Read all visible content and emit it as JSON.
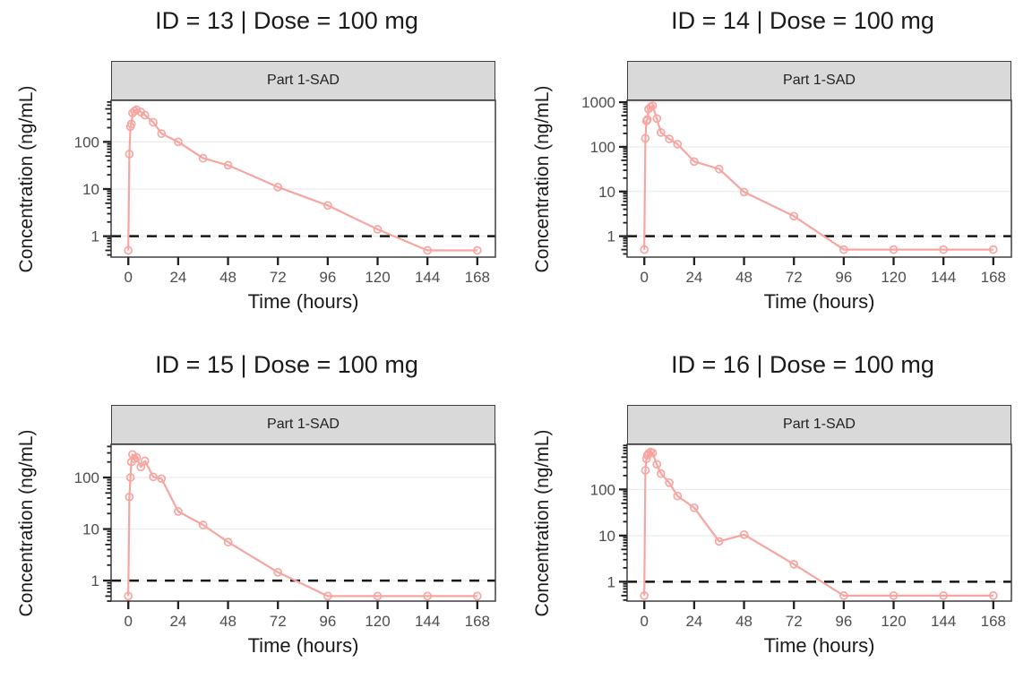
{
  "style": {
    "background": "#ffffff",
    "series_color": "#f7a5a0",
    "strip_fill": "#d9d9d9",
    "strip_border": "#3f3f3f",
    "panel_border": "#3f3f3f",
    "grid_color": "#ebebeb",
    "tick_color": "#1f1f1f",
    "tick_label_color": "#4d4d4d",
    "title_color": "#1a1a1a",
    "lloq_color": "#161616"
  },
  "chart_data": [
    {
      "type": "line",
      "title": "ID = 13 | Dose = 100 mg",
      "facet_label": "Part 1-SAD",
      "xlabel": "Time (hours)",
      "ylabel": "Concentration (ng/mL)",
      "legend": "none",
      "grid": "horizontal-major",
      "yscale": "log10",
      "x_ticks": [
        0,
        24,
        48,
        72,
        96,
        120,
        144,
        168
      ],
      "y_ticks": [
        1,
        10,
        100
      ],
      "xlim": [
        -8.3,
        176.7
      ],
      "ylim": [
        0.36,
        760
      ],
      "lloq": 1,
      "x": [
        0,
        0.5,
        1,
        1.5,
        2,
        3,
        4,
        6,
        8,
        12,
        16,
        24,
        36,
        48,
        72,
        96,
        120,
        144,
        168
      ],
      "y": [
        0.5,
        55,
        210,
        240,
        410,
        450,
        480,
        430,
        370,
        260,
        150,
        100,
        45,
        32,
        11,
        4.5,
        1.4,
        0.5,
        0.5
      ]
    },
    {
      "type": "line",
      "title": "ID = 14 | Dose = 100 mg",
      "facet_label": "Part 1-SAD",
      "xlabel": "Time (hours)",
      "ylabel": "Concentration (ng/mL)",
      "legend": "none",
      "grid": "horizontal-major",
      "yscale": "log10",
      "x_ticks": [
        0,
        24,
        48,
        72,
        96,
        120,
        144,
        168
      ],
      "y_ticks": [
        1,
        10,
        100,
        1000
      ],
      "xlim": [
        -8.3,
        176.7
      ],
      "ylim": [
        0.34,
        1100
      ],
      "lloq": 1,
      "x": [
        0,
        0.5,
        1,
        1.5,
        2,
        3,
        4,
        6,
        8,
        12,
        16,
        24,
        36,
        48,
        72,
        96,
        120,
        144,
        168
      ],
      "y": [
        0.5,
        155,
        380,
        410,
        700,
        780,
        830,
        430,
        210,
        150,
        115,
        47,
        32,
        9.7,
        2.8,
        0.5,
        0.5,
        0.5,
        0.5
      ]
    },
    {
      "type": "line",
      "title": "ID = 15 | Dose = 100 mg",
      "facet_label": "Part 1-SAD",
      "xlabel": "Time (hours)",
      "ylabel": "Concentration (ng/mL)",
      "legend": "none",
      "grid": "horizontal-major",
      "yscale": "log10",
      "x_ticks": [
        0,
        24,
        48,
        72,
        96,
        120,
        144,
        168
      ],
      "y_ticks": [
        1,
        10,
        100
      ],
      "xlim": [
        -8.3,
        176.7
      ],
      "ylim": [
        0.4,
        440
      ],
      "lloq": 1,
      "x": [
        0,
        0.5,
        1,
        1.5,
        2,
        3,
        4,
        6,
        8,
        12,
        16,
        24,
        36,
        48,
        72,
        96,
        120,
        144,
        168
      ],
      "y": [
        0.5,
        42,
        100,
        200,
        280,
        230,
        245,
        160,
        210,
        103,
        95,
        22,
        12,
        5.6,
        1.45,
        0.5,
        0.5,
        0.5,
        0.5
      ]
    },
    {
      "type": "line",
      "title": "ID = 16 | Dose = 100 mg",
      "facet_label": "Part 1-SAD",
      "xlabel": "Time (hours)",
      "ylabel": "Concentration (ng/mL)",
      "legend": "none",
      "grid": "horizontal-major",
      "yscale": "log10",
      "x_ticks": [
        0,
        24,
        48,
        72,
        96,
        120,
        144,
        168
      ],
      "y_ticks": [
        1,
        10,
        100
      ],
      "xlim": [
        -8.3,
        176.7
      ],
      "ylim": [
        0.38,
        950
      ],
      "lloq": 1,
      "x": [
        0,
        0.5,
        1,
        1.5,
        2,
        3,
        4,
        6,
        8,
        12,
        16,
        24,
        36,
        48,
        72,
        96,
        120,
        144,
        168
      ],
      "y": [
        0.5,
        260,
        460,
        550,
        600,
        650,
        620,
        350,
        220,
        140,
        72,
        40,
        7.5,
        10.5,
        2.4,
        0.5,
        0.5,
        0.5,
        0.5
      ]
    }
  ]
}
